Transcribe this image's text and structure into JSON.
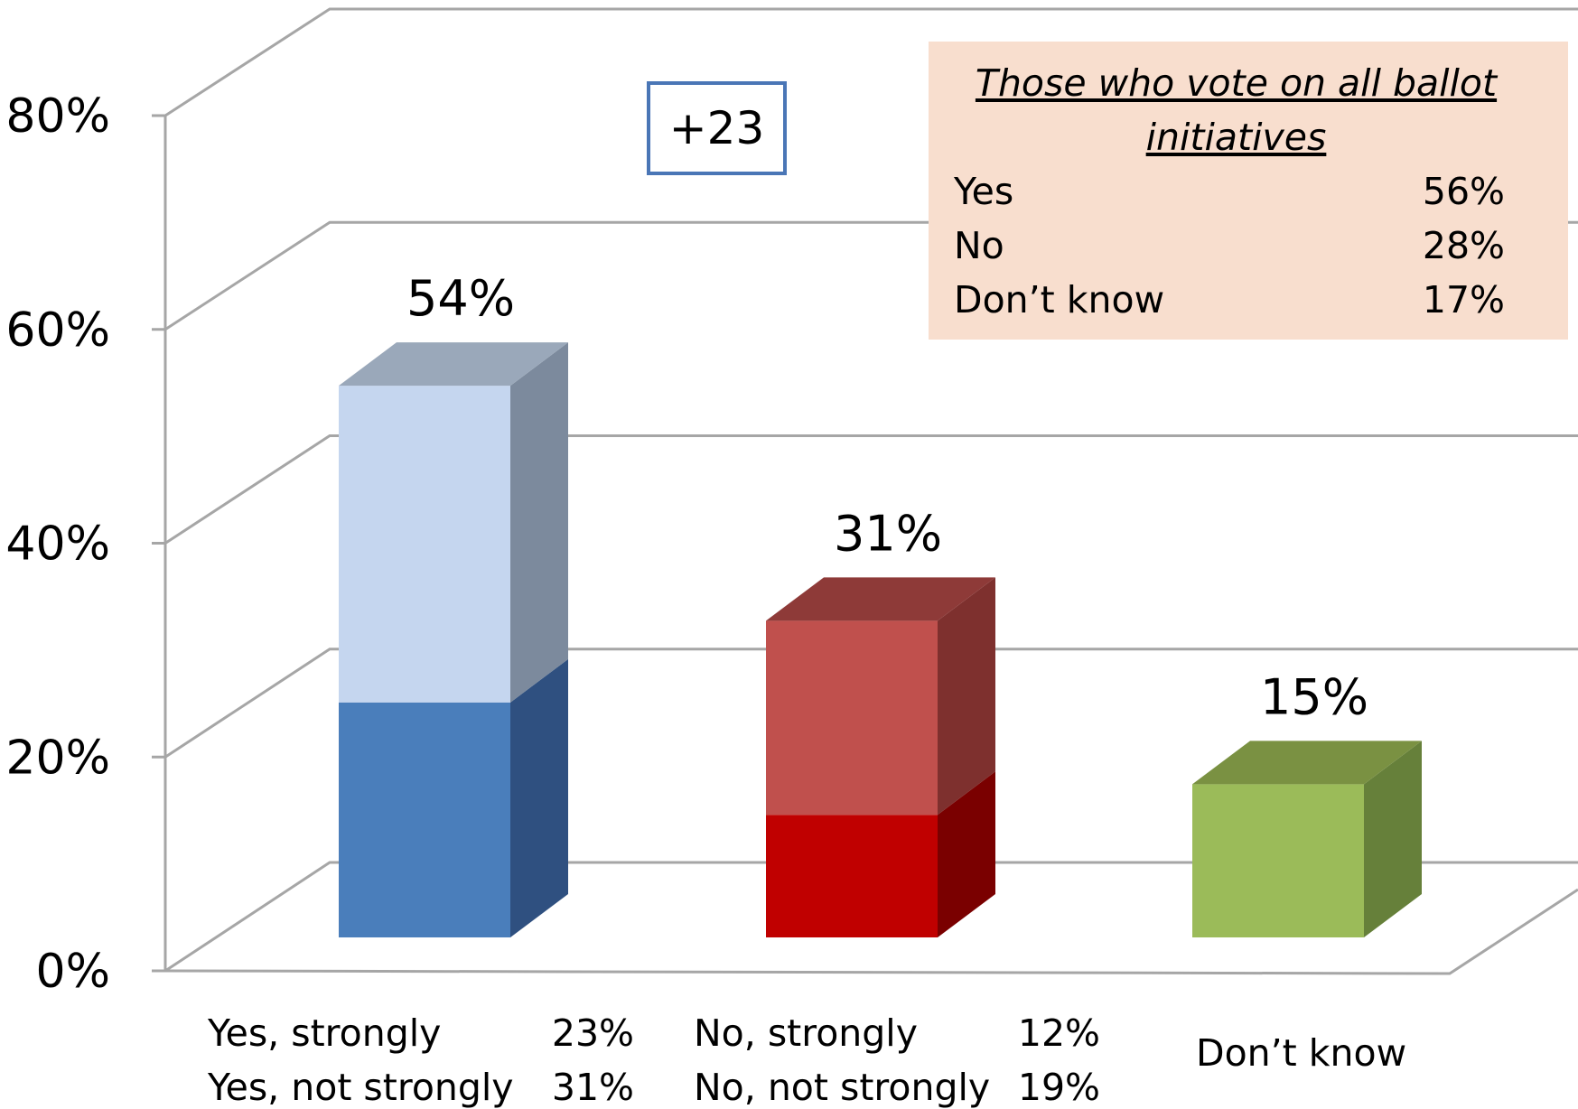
{
  "chart_data": {
    "type": "bar",
    "stacked": true,
    "three_d": true,
    "ylim": [
      0,
      80
    ],
    "yticks": [
      "0%",
      "20%",
      "40%",
      "60%",
      "80%"
    ],
    "grid": true,
    "bars": [
      {
        "category": "Yes",
        "total": 54,
        "total_label": "54%",
        "segments": [
          {
            "label": "Yes, strongly",
            "value": 23,
            "value_label": "23%",
            "color": "#4a7ebb",
            "side": "#2f5080",
            "top": "#7a97bd"
          },
          {
            "label": "Yes, not strongly",
            "value": 31,
            "value_label": "31%",
            "color": "#c5d6ef",
            "side": "#7c8a9d",
            "top": "#9aa8ba"
          }
        ]
      },
      {
        "category": "No",
        "total": 31,
        "total_label": "31%",
        "segments": [
          {
            "label": "No, strongly",
            "value": 12,
            "value_label": "12%",
            "color": "#c00000",
            "side": "#7a0000",
            "top": "#a83a3a"
          },
          {
            "label": "No, not strongly",
            "value": 19,
            "value_label": "19%",
            "color": "#c0504d",
            "side": "#7e302e",
            "top": "#8e3a38"
          }
        ]
      },
      {
        "category": "Don't know",
        "total": 15,
        "total_label": "15%",
        "segments": [
          {
            "label": "Don’t know",
            "value": 15,
            "color": "#9bbb59",
            "side": "#66803a",
            "top": "#7a9142"
          }
        ]
      }
    ],
    "margin_label": "+23",
    "inset_table": {
      "title": "Those who vote on all ballot initiatives",
      "rows": [
        {
          "label": "Yes",
          "value": "56%"
        },
        {
          "label": "No",
          "value": "28%"
        },
        {
          "label": "Don’t know",
          "value": "17%"
        }
      ]
    }
  }
}
